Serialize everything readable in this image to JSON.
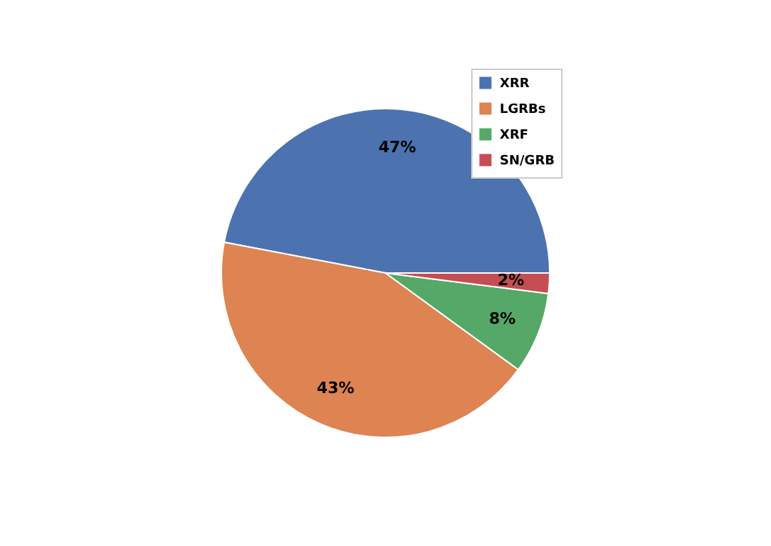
{
  "chart_data": {
    "type": "pie",
    "categories": [
      "XRR",
      "LGRBs",
      "XRF",
      "SN/GRB"
    ],
    "values": [
      47,
      43,
      8,
      2
    ],
    "colors": [
      "#4c72b0",
      "#dd8452",
      "#55a868",
      "#c44e52"
    ],
    "value_labels": [
      "47%",
      "43%",
      "8%",
      "2%"
    ],
    "legend": "top right"
  }
}
